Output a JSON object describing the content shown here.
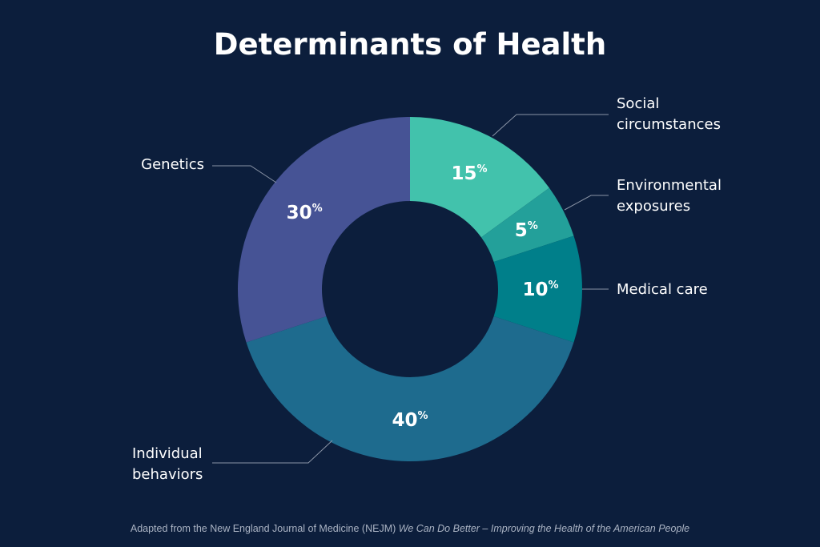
{
  "chart_data": {
    "type": "pie",
    "donut": true,
    "title": "Determinants of Health",
    "slices": [
      {
        "label": [
          "Social",
          "circumstances"
        ],
        "value": 15,
        "color": "#42c2ac"
      },
      {
        "label": [
          "Environmental",
          "exposures"
        ],
        "value": 5,
        "color": "#23a09a"
      },
      {
        "label": [
          "Medical care"
        ],
        "value": 10,
        "color": "#007f8a"
      },
      {
        "label": [
          "Individual",
          "behaviors"
        ],
        "value": 40,
        "color": "#1e6b8e"
      },
      {
        "label": [
          "Genetics"
        ],
        "value": 30,
        "color": "#465395"
      }
    ],
    "value_suffix": "%",
    "start": "top",
    "direction": "clockwise"
  },
  "footer": {
    "plain": "Adapted from the New England Journal of Medicine (NEJM) ",
    "italic": "We Can Do Better – Improving the Health of the American People"
  },
  "colors": {
    "background": "#0c1e3c",
    "leader_line": "#8a94a6"
  }
}
